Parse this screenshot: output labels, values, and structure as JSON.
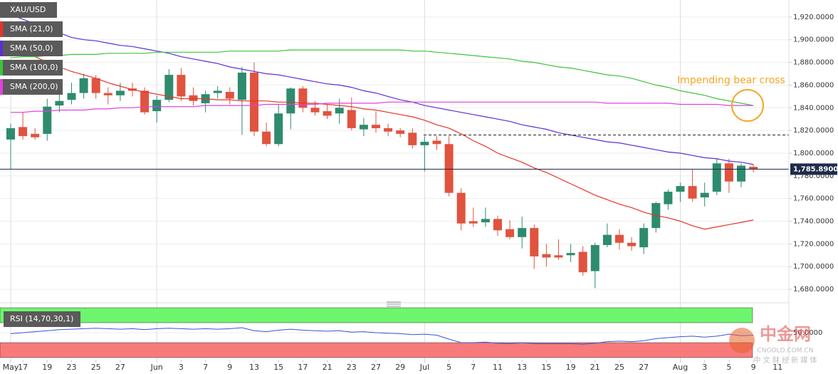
{
  "chart_data": {
    "type": "candlestick",
    "title": "XAU/USD",
    "categories": [
      "May",
      "17",
      null,
      "19",
      null,
      "23",
      null,
      "25",
      null,
      "27",
      null,
      null,
      "Jun",
      null,
      "3",
      null,
      "7",
      null,
      "9",
      null,
      "13",
      null,
      "15",
      null,
      "17",
      null,
      "21",
      null,
      "23",
      null,
      "27",
      null,
      "29",
      null,
      "Jul",
      null,
      "5",
      null,
      "7",
      null,
      "11",
      null,
      "13",
      null,
      "15",
      null,
      "19",
      null,
      "21",
      null,
      "25",
      null,
      "27",
      null,
      null,
      "Aug",
      null,
      "3",
      null,
      "5",
      null,
      "9",
      null,
      "11"
    ],
    "open": [
      1812,
      1823,
      1817,
      1817,
      1842,
      1847,
      1853,
      1866,
      1853,
      1851,
      1857,
      1855,
      1837,
      1847,
      1869,
      1851,
      1844,
      1853,
      1854,
      1847,
      1871,
      1819,
      1808,
      1835,
      1857,
      1840,
      1837,
      1835,
      1838,
      1821,
      1825,
      1822,
      1820,
      1818,
      1807,
      1811,
      1808,
      1765,
      1740,
      1739,
      1742,
      1733,
      1726,
      1734,
      1711,
      1710,
      1710,
      1713,
      1696,
      1719,
      1728,
      1721,
      1717,
      1734,
      1755,
      1766,
      1771,
      1761,
      1766,
      1791,
      1775,
      1788,
      null,
      null
    ],
    "high": [
      1826,
      1836,
      1822,
      1848,
      1852,
      1862,
      1870,
      1869,
      1858,
      1862,
      1862,
      1858,
      1851,
      1874,
      1875,
      1858,
      1855,
      1859,
      1858,
      1876,
      1880,
      1827,
      1843,
      1858,
      1859,
      1846,
      1843,
      1848,
      1849,
      1831,
      1837,
      1826,
      1822,
      1822,
      1815,
      1815,
      1815,
      1769,
      1752,
      1752,
      1745,
      1741,
      1744,
      1737,
      1720,
      1724,
      1720,
      1718,
      1721,
      1738,
      1733,
      1726,
      1738,
      1757,
      1768,
      1774,
      1786,
      1774,
      1795,
      1795,
      1791,
      1790,
      null,
      null
    ],
    "low": [
      1786,
      1812,
      1812,
      1811,
      1836,
      1843,
      1848,
      1848,
      1843,
      1846,
      1850,
      1834,
      1827,
      1845,
      1846,
      1842,
      1836,
      1848,
      1843,
      1816,
      1815,
      1806,
      1806,
      1821,
      1836,
      1833,
      1830,
      1826,
      1820,
      1815,
      1818,
      1815,
      1814,
      1804,
      1784,
      1803,
      1762,
      1732,
      1735,
      1735,
      1727,
      1724,
      1716,
      1698,
      1700,
      1706,
      1704,
      1692,
      1681,
      1717,
      1715,
      1714,
      1711,
      1730,
      1750,
      1757,
      1757,
      1753,
      1763,
      1765,
      1770,
      1783,
      null,
      null
    ],
    "close": [
      1822,
      1815,
      1814,
      1841,
      1846,
      1853,
      1866,
      1853,
      1851,
      1855,
      1855,
      1836,
      1847,
      1869,
      1850,
      1846,
      1852,
      1855,
      1848,
      1871,
      1819,
      1808,
      1835,
      1857,
      1840,
      1836,
      1833,
      1840,
      1822,
      1825,
      1822,
      1819,
      1817,
      1807,
      1810,
      1808,
      1765,
      1738,
      1738,
      1742,
      1732,
      1726,
      1734,
      1709,
      1708,
      1708,
      1712,
      1695,
      1719,
      1728,
      1721,
      1718,
      1734,
      1756,
      1766,
      1771,
      1760,
      1765,
      1791,
      1775,
      1789,
      1786,
      null,
      null
    ],
    "up_color": "#2e8b6e",
    "down_color": "#e0533f",
    "series": [
      {
        "name": "SMA (21,0)",
        "color": "#e8332a",
        "values": [
          1893,
          1889,
          1885,
          1880,
          1876,
          1872,
          1869,
          1866,
          1862,
          1859,
          1856,
          1854,
          1852,
          1850,
          1848,
          1848,
          1848,
          1847,
          1847,
          1846,
          1846,
          1846,
          1845,
          1845,
          1844,
          1844,
          1843,
          1842,
          1841,
          1839,
          1838,
          1836,
          1834,
          1832,
          1829,
          1825,
          1822,
          1817,
          1811,
          1806,
          1800,
          1796,
          1792,
          1787,
          1783,
          1778,
          1773,
          1768,
          1763,
          1759,
          1755,
          1752,
          1748,
          1745,
          1743,
          1740,
          1736,
          1733,
          1735,
          1737,
          1739,
          1741,
          null,
          null
        ]
      },
      {
        "name": "SMA (50,0)",
        "color": "#5b2fd6",
        "values": [
          1922,
          1918,
          1914,
          1910,
          1906,
          1902,
          1900,
          1899,
          1897,
          1895,
          1894,
          1892,
          1890,
          1888,
          1885,
          1883,
          1881,
          1879,
          1876,
          1874,
          1872,
          1870,
          1869,
          1867,
          1865,
          1863,
          1861,
          1860,
          1858,
          1855,
          1853,
          1850,
          1847,
          1845,
          1842,
          1840,
          1838,
          1836,
          1834,
          1832,
          1830,
          1828,
          1825,
          1823,
          1821,
          1818,
          1816,
          1814,
          1812,
          1810,
          1809,
          1807,
          1805,
          1803,
          1801,
          1800,
          1798,
          1796,
          1795,
          1793,
          1792,
          1790,
          null,
          null
        ]
      },
      {
        "name": "SMA (100,0)",
        "color": "#3cc43c",
        "values": [
          1884,
          1885,
          1885,
          1886,
          1886,
          1887,
          1887,
          1887,
          1888,
          1888,
          1888,
          1888,
          1889,
          1889,
          1889,
          1889,
          1889,
          1889,
          1890,
          1890,
          1890,
          1890,
          1890,
          1891,
          1891,
          1891,
          1891,
          1891,
          1891,
          1891,
          1891,
          1891,
          1891,
          1890,
          1890,
          1889,
          1888,
          1887,
          1886,
          1885,
          1884,
          1883,
          1881,
          1880,
          1878,
          1876,
          1875,
          1873,
          1871,
          1869,
          1868,
          1866,
          1863,
          1860,
          1858,
          1855,
          1853,
          1851,
          1848,
          1846,
          1844,
          1842,
          null,
          null
        ]
      },
      {
        "name": "SMA (200,0)",
        "color": "#e040e0",
        "values": [
          1836,
          1836,
          1837,
          1837,
          1838,
          1838,
          1838,
          1839,
          1839,
          1840,
          1840,
          1841,
          1841,
          1841,
          1841,
          1841,
          1842,
          1842,
          1842,
          1842,
          1842,
          1843,
          1843,
          1843,
          1843,
          1843,
          1844,
          1844,
          1844,
          1844,
          1844,
          1845,
          1845,
          1845,
          1845,
          1845,
          1845,
          1845,
          1845,
          1845,
          1845,
          1845,
          1845,
          1845,
          1845,
          1845,
          1845,
          1845,
          1845,
          1844,
          1844,
          1844,
          1844,
          1844,
          1844,
          1843,
          1843,
          1843,
          1843,
          1842,
          1842,
          1842,
          null,
          null
        ]
      }
    ],
    "ylim": [
      1670,
      1935
    ],
    "yticks": [
      {
        "value": 1680,
        "label": "1,680.0000"
      },
      {
        "value": 1700,
        "label": "1,700.0000"
      },
      {
        "value": 1720,
        "label": "1,720.0000"
      },
      {
        "value": 1740,
        "label": "1,740.0000"
      },
      {
        "value": 1760,
        "label": "1,760.0000"
      },
      {
        "value": 1780,
        "label": "1,780.0000"
      },
      {
        "value": 1800,
        "label": "1,800.0000"
      },
      {
        "value": 1820,
        "label": "1,820.0000"
      },
      {
        "value": 1840,
        "label": "1,840.0000"
      },
      {
        "value": 1860,
        "label": "1,860.0000"
      },
      {
        "value": 1880,
        "label": "1,880.0000"
      },
      {
        "value": 1900,
        "label": "1,900.0000"
      },
      {
        "value": 1920,
        "label": "1,920.0000"
      }
    ],
    "grid": true,
    "last_price": {
      "value": 1785.89,
      "label": "1,785.8900"
    },
    "level": 1816,
    "annotation": "Impending bear cross",
    "rsi": {
      "name": "RSI (14,70,30,1)",
      "color": "#3355dd",
      "values": [
        48,
        50,
        52,
        54,
        56,
        57,
        58,
        59,
        58,
        57,
        58,
        56,
        58,
        59,
        58,
        57,
        58,
        57,
        58,
        60,
        54,
        52,
        55,
        57,
        55,
        54,
        53,
        54,
        51,
        52,
        50,
        49,
        48,
        46,
        47,
        45,
        37,
        30,
        30,
        31,
        29,
        28,
        30,
        28,
        28,
        28,
        28,
        27,
        29,
        32,
        33,
        32,
        34,
        38,
        40,
        42,
        43,
        41,
        43,
        47,
        44,
        45,
        null,
        null
      ],
      "ylim": [
        0,
        100
      ],
      "upper": 70,
      "lower": 30,
      "yticks": [
        {
          "value": 50,
          "label": "50.0000"
        }
      ]
    },
    "watermark": {
      "brand": "中金网",
      "site": "CNGOLD.COM.CN",
      "slogan": "中 文 财 经 新 媒 体"
    }
  }
}
